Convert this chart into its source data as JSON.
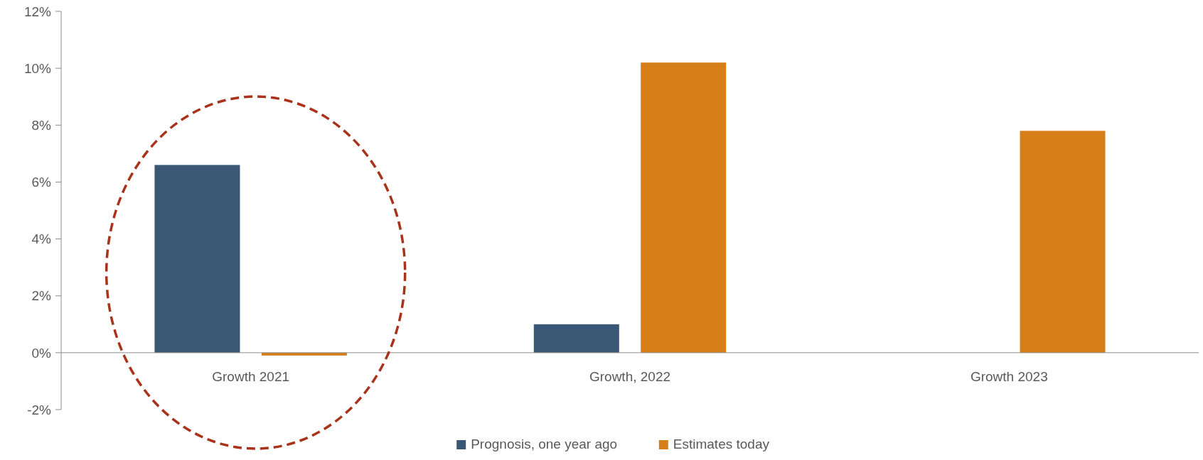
{
  "chart_data": {
    "type": "bar",
    "categories": [
      "Growth 2021",
      "Growth, 2022",
      "Growth 2023"
    ],
    "series": [
      {
        "name": "Prognosis, one year ago",
        "color": "#3a5875",
        "values": [
          6.6,
          1.0,
          null
        ]
      },
      {
        "name": "Estimates today",
        "color": "#d67f19",
        "values": [
          -0.1,
          10.2,
          7.8
        ]
      }
    ],
    "ylim": [
      -2,
      12
    ],
    "yticks": [
      {
        "value": -2,
        "label": "-2%"
      },
      {
        "value": 0,
        "label": "0%"
      },
      {
        "value": 2,
        "label": "2%"
      },
      {
        "value": 4,
        "label": "4%"
      },
      {
        "value": 6,
        "label": "6%"
      },
      {
        "value": 8,
        "label": "8%"
      },
      {
        "value": 10,
        "label": "10%"
      },
      {
        "value": 12,
        "label": "12%"
      }
    ],
    "grid": false,
    "legend": "bottom"
  }
}
